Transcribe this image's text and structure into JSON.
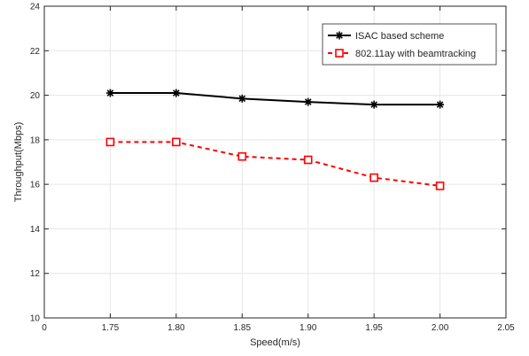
{
  "chart_data": {
    "type": "line",
    "xlabel": "Speed(m/s)",
    "ylabel": "Throughput(Mbps)",
    "x_tick_labels": [
      "0",
      "1.75",
      "1.80",
      "1.85",
      "1.90",
      "1.95",
      "2.00",
      "2.05"
    ],
    "y_ticks": [
      10,
      12,
      14,
      16,
      18,
      20,
      22,
      24
    ],
    "ylim": [
      10,
      24
    ],
    "categories": [
      "1.75",
      "1.80",
      "1.85",
      "1.90",
      "1.95",
      "2.00"
    ],
    "x": [
      1.75,
      1.8,
      1.85,
      1.9,
      1.95,
      2.0
    ],
    "series": [
      {
        "name": "ISAC based scheme",
        "values": [
          20.1,
          20.1,
          19.85,
          19.7,
          19.58,
          19.58
        ],
        "color": "#000000",
        "line_style": "solid",
        "marker": "asterisk"
      },
      {
        "name": "802.11ay with beamtracking",
        "values": [
          17.9,
          17.9,
          17.25,
          17.1,
          16.3,
          15.93
        ],
        "color": "#ff0000",
        "line_style": "dashed",
        "marker": "square"
      }
    ],
    "legend_position": "top-right",
    "grid": true
  }
}
